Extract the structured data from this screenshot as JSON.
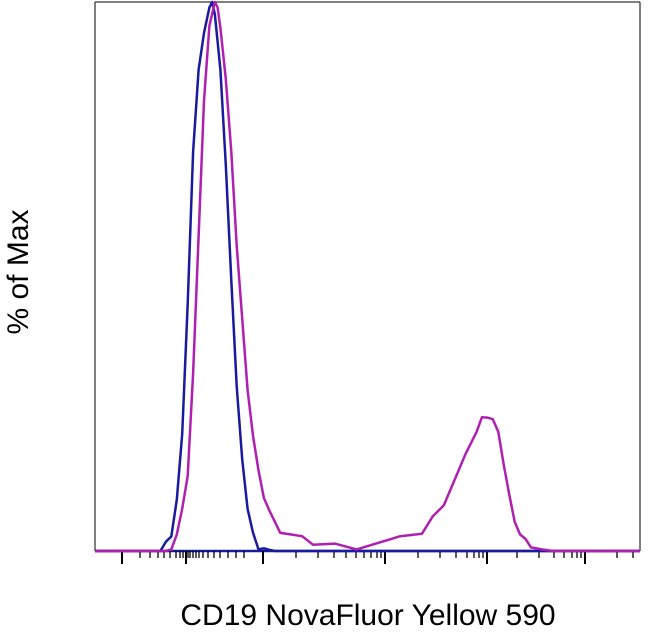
{
  "chart_data": {
    "type": "line",
    "title": "",
    "xlabel": "CD19 NovaFluor Yellow 590",
    "ylabel": "% of Max",
    "x_scale": "biexponential",
    "xlim": [
      0,
      1
    ],
    "ylim": [
      0,
      100
    ],
    "grid": false,
    "legend": "none",
    "series": [
      {
        "color": "#1a1aa0",
        "x": [
          0.0,
          0.12,
          0.13,
          0.14,
          0.15,
          0.16,
          0.17,
          0.18,
          0.19,
          0.2,
          0.21,
          0.215,
          0.22,
          0.23,
          0.24,
          0.25,
          0.26,
          0.27,
          0.28,
          0.29,
          0.3,
          0.31,
          0.32,
          0.33,
          0.35,
          1.0
        ],
        "y": [
          0,
          0,
          1,
          3,
          9,
          22,
          45,
          72,
          88,
          94,
          99,
          100,
          97,
          88,
          70,
          50,
          30,
          16,
          8,
          3,
          1,
          0.5,
          0.2,
          0,
          0,
          0
        ]
      },
      {
        "color": "#b020b0",
        "x": [
          0.0,
          0.13,
          0.14,
          0.15,
          0.16,
          0.17,
          0.18,
          0.19,
          0.2,
          0.21,
          0.22,
          0.225,
          0.23,
          0.24,
          0.25,
          0.26,
          0.27,
          0.28,
          0.29,
          0.3,
          0.31,
          0.32,
          0.34,
          0.36,
          0.38,
          0.4,
          0.44,
          0.48,
          0.52,
          0.56,
          0.6,
          0.62,
          0.64,
          0.66,
          0.68,
          0.7,
          0.71,
          0.72,
          0.73,
          0.74,
          0.75,
          0.76,
          0.77,
          0.78,
          0.79,
          0.8,
          0.82,
          0.84,
          1.0
        ],
        "y": [
          0,
          0,
          1,
          3,
          7,
          14,
          32,
          58,
          82,
          95,
          100,
          99,
          96,
          86,
          72,
          56,
          42,
          30,
          21,
          14,
          10,
          7,
          4,
          3,
          2,
          1.5,
          1,
          1,
          1.5,
          2,
          3.5,
          6,
          9,
          13,
          17,
          22,
          24,
          25,
          24,
          21,
          16,
          10,
          6,
          3,
          1.5,
          1,
          0.3,
          0,
          0
        ]
      }
    ]
  }
}
